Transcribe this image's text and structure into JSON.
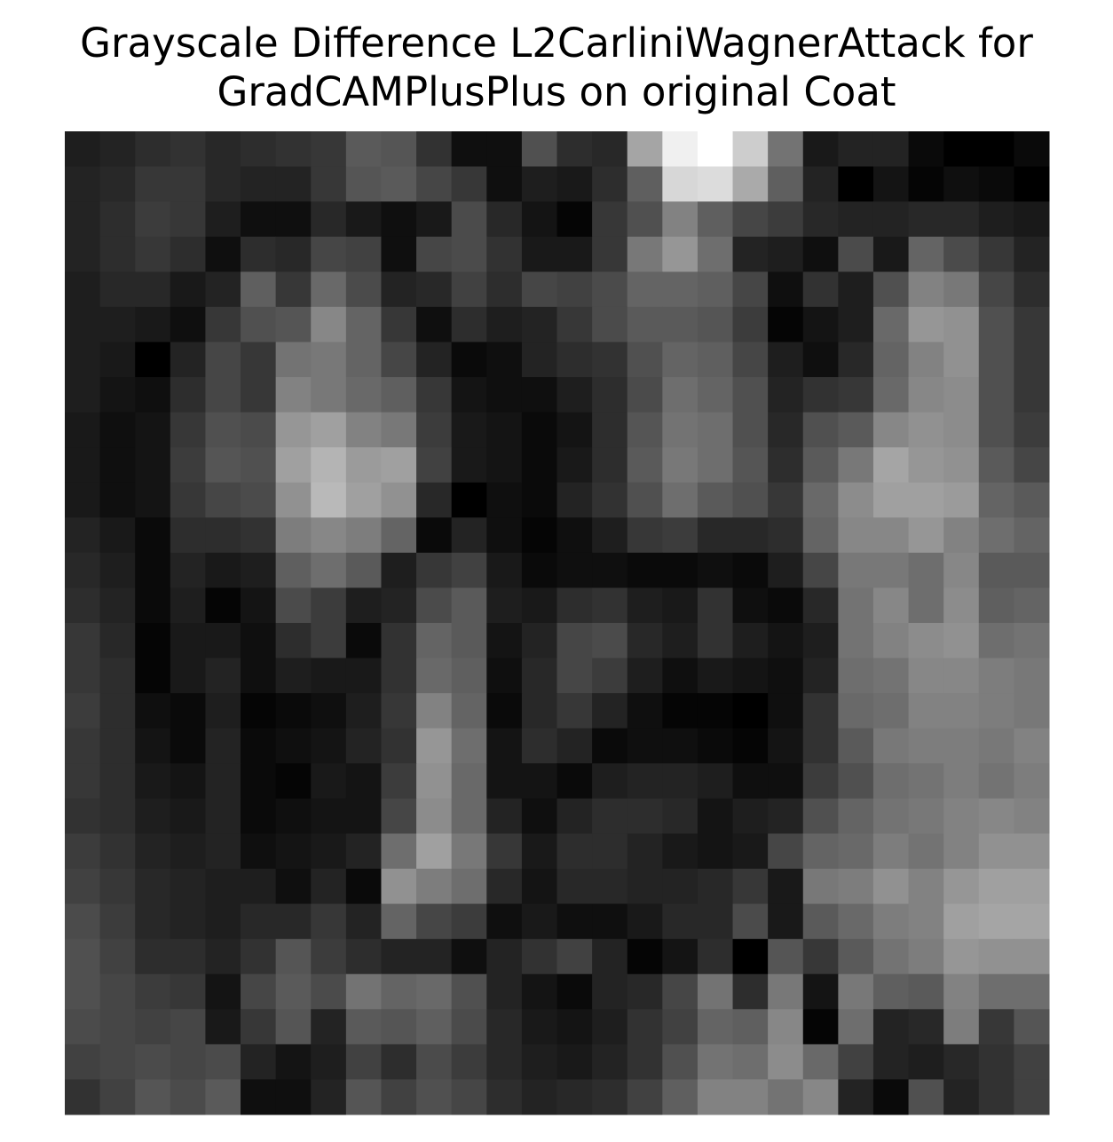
{
  "chart_data": {
    "type": "heatmap",
    "cmap": "gray",
    "title": [
      "Grayscale Difference L2CarliniWagnerAttack for",
      "GradCAMPlusPlus on original Coat"
    ],
    "values": [
      [
        30,
        35,
        45,
        50,
        40,
        45,
        50,
        55,
        90,
        85,
        50,
        15,
        15,
        80,
        45,
        40,
        165,
        240,
        255,
        205,
        115,
        25,
        35,
        35,
        10,
        0,
        0,
        10
      ],
      [
        35,
        40,
        55,
        55,
        40,
        35,
        35,
        55,
        85,
        90,
        70,
        55,
        15,
        30,
        25,
        45,
        95,
        215,
        220,
        170,
        95,
        35,
        0,
        20,
        5,
        15,
        10,
        0
      ],
      [
        35,
        45,
        60,
        55,
        30,
        15,
        15,
        40,
        25,
        15,
        25,
        75,
        40,
        20,
        5,
        55,
        80,
        130,
        95,
        70,
        60,
        40,
        35,
        35,
        40,
        40,
        30,
        25
      ],
      [
        35,
        45,
        55,
        45,
        15,
        45,
        40,
        70,
        65,
        15,
        70,
        75,
        50,
        25,
        25,
        55,
        120,
        150,
        110,
        35,
        30,
        15,
        75,
        25,
        100,
        75,
        55,
        35
      ],
      [
        30,
        40,
        40,
        25,
        35,
        95,
        55,
        105,
        75,
        35,
        40,
        65,
        45,
        70,
        65,
        75,
        100,
        100,
        95,
        70,
        15,
        50,
        30,
        80,
        130,
        120,
        70,
        45
      ],
      [
        30,
        30,
        25,
        15,
        55,
        80,
        85,
        135,
        100,
        55,
        15,
        45,
        30,
        35,
        55,
        75,
        90,
        90,
        85,
        60,
        5,
        20,
        30,
        105,
        150,
        145,
        80,
        55
      ],
      [
        30,
        25,
        0,
        35,
        70,
        55,
        115,
        120,
        100,
        70,
        35,
        10,
        15,
        35,
        45,
        50,
        80,
        100,
        95,
        70,
        30,
        15,
        40,
        100,
        130,
        145,
        80,
        55
      ],
      [
        30,
        20,
        15,
        45,
        70,
        55,
        130,
        120,
        105,
        95,
        55,
        20,
        15,
        15,
        30,
        45,
        75,
        110,
        100,
        80,
        35,
        50,
        55,
        105,
        135,
        140,
        80,
        55
      ],
      [
        25,
        15,
        20,
        55,
        80,
        75,
        150,
        160,
        130,
        120,
        60,
        25,
        20,
        10,
        20,
        45,
        85,
        115,
        110,
        80,
        40,
        80,
        90,
        135,
        145,
        140,
        80,
        60
      ],
      [
        25,
        15,
        20,
        60,
        85,
        80,
        160,
        180,
        155,
        160,
        65,
        25,
        20,
        10,
        25,
        45,
        90,
        120,
        110,
        85,
        45,
        90,
        120,
        165,
        150,
        145,
        90,
        70
      ],
      [
        25,
        15,
        20,
        55,
        70,
        75,
        145,
        185,
        160,
        145,
        40,
        0,
        15,
        10,
        35,
        50,
        80,
        110,
        90,
        80,
        55,
        105,
        140,
        160,
        160,
        155,
        100,
        90
      ],
      [
        35,
        25,
        10,
        45,
        45,
        50,
        125,
        135,
        125,
        100,
        10,
        35,
        15,
        5,
        15,
        30,
        55,
        60,
        40,
        40,
        45,
        100,
        135,
        135,
        150,
        130,
        110,
        100
      ],
      [
        40,
        30,
        10,
        35,
        25,
        30,
        95,
        110,
        90,
        30,
        55,
        65,
        25,
        10,
        15,
        15,
        10,
        10,
        15,
        10,
        30,
        70,
        120,
        120,
        110,
        135,
        90,
        90
      ],
      [
        45,
        35,
        10,
        30,
        5,
        20,
        75,
        60,
        30,
        35,
        75,
        90,
        30,
        25,
        45,
        50,
        30,
        25,
        50,
        15,
        10,
        40,
        115,
        135,
        110,
        140,
        95,
        100
      ],
      [
        55,
        40,
        5,
        25,
        25,
        15,
        45,
        60,
        10,
        50,
        100,
        90,
        20,
        35,
        70,
        75,
        40,
        30,
        50,
        30,
        20,
        30,
        115,
        130,
        140,
        145,
        110,
        115
      ],
      [
        55,
        45,
        5,
        25,
        35,
        15,
        30,
        25,
        25,
        50,
        105,
        95,
        15,
        40,
        70,
        60,
        30,
        15,
        25,
        20,
        15,
        35,
        110,
        115,
        135,
        135,
        125,
        120
      ],
      [
        60,
        45,
        15,
        10,
        30,
        5,
        10,
        15,
        30,
        55,
        130,
        100,
        10,
        40,
        55,
        35,
        15,
        5,
        5,
        0,
        15,
        50,
        105,
        110,
        130,
        130,
        125,
        120
      ],
      [
        55,
        45,
        20,
        10,
        35,
        10,
        15,
        20,
        35,
        50,
        150,
        110,
        20,
        45,
        35,
        10,
        15,
        15,
        10,
        5,
        20,
        50,
        90,
        120,
        125,
        125,
        120,
        130
      ],
      [
        55,
        45,
        25,
        20,
        35,
        10,
        5,
        25,
        20,
        60,
        145,
        105,
        20,
        20,
        10,
        30,
        35,
        35,
        30,
        15,
        15,
        60,
        80,
        110,
        115,
        125,
        115,
        125
      ],
      [
        50,
        45,
        30,
        25,
        35,
        10,
        15,
        20,
        20,
        70,
        140,
        105,
        35,
        15,
        35,
        45,
        45,
        40,
        20,
        30,
        35,
        80,
        100,
        115,
        120,
        130,
        135,
        130
      ],
      [
        60,
        50,
        35,
        30,
        35,
        15,
        20,
        25,
        35,
        110,
        160,
        120,
        55,
        25,
        45,
        45,
        35,
        25,
        20,
        25,
        70,
        100,
        105,
        125,
        115,
        130,
        145,
        145
      ],
      [
        65,
        55,
        40,
        35,
        30,
        30,
        15,
        35,
        10,
        145,
        125,
        110,
        40,
        20,
        40,
        40,
        35,
        35,
        40,
        55,
        25,
        120,
        125,
        145,
        130,
        150,
        160,
        160
      ],
      [
        75,
        60,
        40,
        35,
        30,
        40,
        40,
        55,
        35,
        100,
        70,
        60,
        15,
        25,
        15,
        15,
        25,
        40,
        40,
        75,
        25,
        90,
        105,
        125,
        130,
        160,
        165,
        165
      ],
      [
        80,
        65,
        45,
        45,
        35,
        50,
        85,
        60,
        45,
        35,
        35,
        15,
        35,
        50,
        65,
        35,
        5,
        20,
        45,
        0,
        85,
        55,
        90,
        115,
        125,
        150,
        145,
        145
      ],
      [
        80,
        70,
        60,
        55,
        20,
        70,
        90,
        75,
        115,
        100,
        105,
        80,
        35,
        20,
        10,
        35,
        40,
        70,
        115,
        45,
        120,
        20,
        120,
        95,
        90,
        130,
        110,
        110
      ],
      [
        75,
        70,
        65,
        70,
        25,
        55,
        85,
        35,
        90,
        85,
        95,
        75,
        40,
        25,
        20,
        30,
        50,
        65,
        100,
        95,
        135,
        5,
        110,
        35,
        40,
        125,
        55,
        85
      ],
      [
        65,
        70,
        75,
        70,
        75,
        35,
        20,
        30,
        65,
        45,
        75,
        60,
        40,
        30,
        25,
        35,
        50,
        80,
        115,
        110,
        140,
        105,
        65,
        35,
        30,
        40,
        50,
        65
      ],
      [
        50,
        65,
        85,
        75,
        90,
        15,
        15,
        35,
        85,
        65,
        80,
        70,
        45,
        35,
        40,
        45,
        65,
        95,
        130,
        130,
        115,
        135,
        35,
        10,
        80,
        35,
        50,
        65
      ]
    ]
  }
}
